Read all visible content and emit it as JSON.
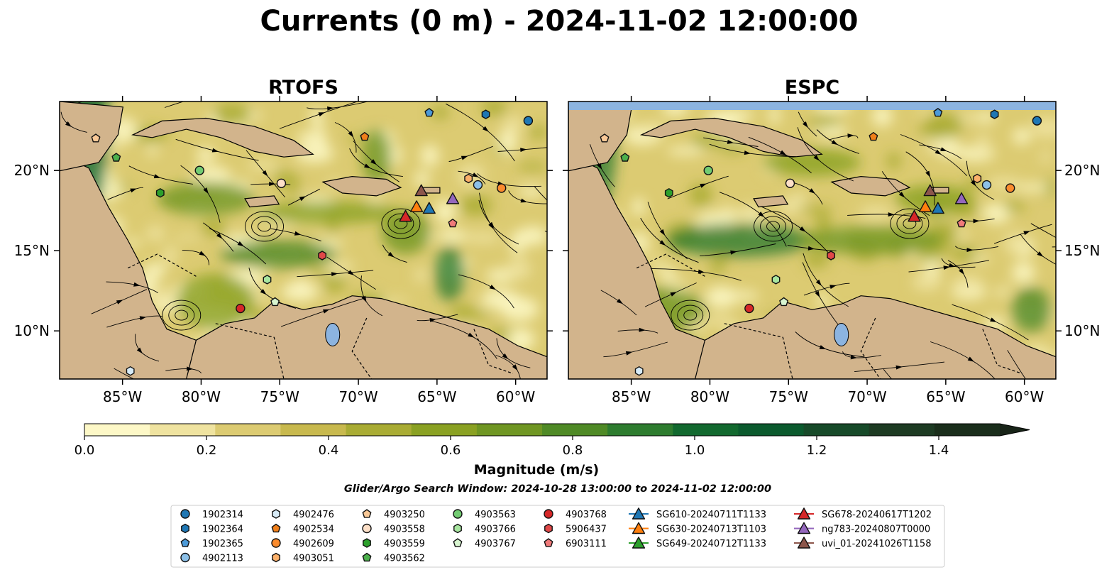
{
  "figure": {
    "title": "Currents (0 m) - 2024-11-02 12:00:00",
    "search_window": "Glider/Argo Search Window: 2024-10-28 13:00:00 to 2024-11-02 12:00:00"
  },
  "chart_data": [
    {
      "type": "map",
      "title": "RTOFS",
      "lon_range": [
        -89,
        -58
      ],
      "lat_range": [
        7,
        24.3
      ],
      "x_ticks": [
        "85°W",
        "80°W",
        "75°W",
        "70°W",
        "65°W",
        "60°W"
      ],
      "x_tick_values": [
        -85,
        -80,
        -75,
        -70,
        -65,
        -60
      ],
      "y_ticks": [
        "20°N",
        "15°N",
        "10°N"
      ],
      "y_tick_values": [
        20,
        15,
        10
      ],
      "y_tick_side": "left",
      "platforms": [
        {
          "id": "1902314",
          "lon": -59.2,
          "lat": 23.1
        },
        {
          "id": "1902364",
          "lon": -61.9,
          "lat": 23.5
        },
        {
          "id": "1902365",
          "lon": -65.5,
          "lat": 23.6
        },
        {
          "id": "4902113",
          "lon": -62.4,
          "lat": 19.1
        },
        {
          "id": "4902476",
          "lon": -84.5,
          "lat": 7.5
        },
        {
          "id": "4902534",
          "lon": -69.6,
          "lat": 22.1
        },
        {
          "id": "4902609",
          "lon": -60.9,
          "lat": 18.9
        },
        {
          "id": "4903051",
          "lon": -63.0,
          "lat": 19.5
        },
        {
          "id": "4903250",
          "lon": -86.7,
          "lat": 22.0
        },
        {
          "id": "4903558",
          "lon": -74.9,
          "lat": 19.2
        },
        {
          "id": "4903559",
          "lon": -82.6,
          "lat": 18.6
        },
        {
          "id": "4903562",
          "lon": -85.4,
          "lat": 20.8
        },
        {
          "id": "4903563",
          "lon": -80.1,
          "lat": 20.0
        },
        {
          "id": "4903766",
          "lon": -75.8,
          "lat": 13.2
        },
        {
          "id": "4903767",
          "lon": -75.3,
          "lat": 11.8
        },
        {
          "id": "4903768",
          "lon": -77.5,
          "lat": 11.4
        },
        {
          "id": "5906437",
          "lon": -72.3,
          "lat": 14.7
        },
        {
          "id": "6903111",
          "lon": -64.0,
          "lat": 16.7
        },
        {
          "id": "SG610-20240711T1133",
          "lon": -65.5,
          "lat": 17.6
        },
        {
          "id": "SG630-20240713T1103",
          "lon": -66.3,
          "lat": 17.7
        },
        {
          "id": "SG649-20240712T1133",
          "lon": -67.0,
          "lat": 17.1
        },
        {
          "id": "SG678-20240617T1202",
          "lon": -67.0,
          "lat": 17.1
        },
        {
          "id": "ng783-20240807T0000",
          "lon": -64.0,
          "lat": 18.2
        },
        {
          "id": "uvi_01-20241026T1158",
          "lon": -66.0,
          "lat": 18.7
        }
      ]
    },
    {
      "type": "map",
      "title": "ESPC",
      "lon_range": [
        -89,
        -58
      ],
      "lat_range": [
        7,
        24.3
      ],
      "x_ticks": [
        "85°W",
        "80°W",
        "75°W",
        "70°W",
        "65°W",
        "60°W"
      ],
      "x_tick_values": [
        -85,
        -80,
        -75,
        -70,
        -65,
        -60
      ],
      "y_ticks": [
        "20°N",
        "15°N",
        "10°N"
      ],
      "y_tick_values": [
        20,
        15,
        10
      ],
      "y_tick_side": "right",
      "platforms": [
        {
          "id": "1902314",
          "lon": -59.2,
          "lat": 23.1
        },
        {
          "id": "1902364",
          "lon": -61.9,
          "lat": 23.5
        },
        {
          "id": "1902365",
          "lon": -65.5,
          "lat": 23.6
        },
        {
          "id": "4902113",
          "lon": -62.4,
          "lat": 19.1
        },
        {
          "id": "4902476",
          "lon": -84.5,
          "lat": 7.5
        },
        {
          "id": "4902534",
          "lon": -69.6,
          "lat": 22.1
        },
        {
          "id": "4902609",
          "lon": -60.9,
          "lat": 18.9
        },
        {
          "id": "4903051",
          "lon": -63.0,
          "lat": 19.5
        },
        {
          "id": "4903250",
          "lon": -86.7,
          "lat": 22.0
        },
        {
          "id": "4903558",
          "lon": -74.9,
          "lat": 19.2
        },
        {
          "id": "4903559",
          "lon": -82.6,
          "lat": 18.6
        },
        {
          "id": "4903562",
          "lon": -85.4,
          "lat": 20.8
        },
        {
          "id": "4903563",
          "lon": -80.1,
          "lat": 20.0
        },
        {
          "id": "4903766",
          "lon": -75.8,
          "lat": 13.2
        },
        {
          "id": "4903767",
          "lon": -75.3,
          "lat": 11.8
        },
        {
          "id": "4903768",
          "lon": -77.5,
          "lat": 11.4
        },
        {
          "id": "5906437",
          "lon": -72.3,
          "lat": 14.7
        },
        {
          "id": "6903111",
          "lon": -64.0,
          "lat": 16.7
        },
        {
          "id": "SG610-20240711T1133",
          "lon": -65.5,
          "lat": 17.6
        },
        {
          "id": "SG630-20240713T1103",
          "lon": -66.3,
          "lat": 17.7
        },
        {
          "id": "SG649-20240712T1133",
          "lon": -67.0,
          "lat": 17.1
        },
        {
          "id": "SG678-20240617T1202",
          "lon": -67.0,
          "lat": 17.1
        },
        {
          "id": "ng783-20240807T0000",
          "lon": -64.0,
          "lat": 18.2
        },
        {
          "id": "uvi_01-20241026T1158",
          "lon": -66.0,
          "lat": 18.7
        }
      ]
    }
  ],
  "colorbar": {
    "label": "Magnitude (m/s)",
    "range": [
      0,
      1.5
    ],
    "extend": "max",
    "ticks": [
      "0.0",
      "0.2",
      "0.4",
      "0.6",
      "0.8",
      "1.0",
      "1.2",
      "1.4"
    ],
    "tick_values": [
      0.0,
      0.2,
      0.4,
      0.6,
      0.8,
      1.0,
      1.2,
      1.4
    ],
    "colors": [
      "#fdf8c7",
      "#efe3a0",
      "#dccb72",
      "#c8b94e",
      "#a9ac34",
      "#8aa123",
      "#6f9623",
      "#4f8a26",
      "#2e7c2f",
      "#12692f",
      "#0b5a2e",
      "#174a29",
      "#1d3b23",
      "#1a2e1b",
      "#182418"
    ]
  },
  "legend": {
    "items": [
      {
        "label": "1902314",
        "marker": "circle",
        "color": "#1f77b4"
      },
      {
        "label": "1902364",
        "marker": "hexagon",
        "color": "#1f77b4"
      },
      {
        "label": "1902365",
        "marker": "pentagon",
        "color": "#4c9ad8"
      },
      {
        "label": "4902113",
        "marker": "circle",
        "color": "#8cc0e8"
      },
      {
        "label": "4902476",
        "marker": "hexagon",
        "color": "#d7ebf7"
      },
      {
        "label": "4902534",
        "marker": "pentagon",
        "color": "#f07f1a"
      },
      {
        "label": "4902609",
        "marker": "circle",
        "color": "#fb8c2e"
      },
      {
        "label": "4903051",
        "marker": "hexagon",
        "color": "#fbb06a"
      },
      {
        "label": "4903250",
        "marker": "pentagon",
        "color": "#f9c896"
      },
      {
        "label": "4903558",
        "marker": "circle",
        "color": "#fde0c8"
      },
      {
        "label": "4903559",
        "marker": "hexagon",
        "color": "#2ca02c"
      },
      {
        "label": "4903562",
        "marker": "pentagon",
        "color": "#4cb04c"
      },
      {
        "label": "4903563",
        "marker": "circle",
        "color": "#72cc72"
      },
      {
        "label": "4903766",
        "marker": "hexagon",
        "color": "#a8e6a0"
      },
      {
        "label": "4903767",
        "marker": "pentagon",
        "color": "#d8f5d0"
      },
      {
        "label": "4903768",
        "marker": "circle",
        "color": "#d62728"
      },
      {
        "label": "5906437",
        "marker": "hexagon",
        "color": "#e04848"
      },
      {
        "label": "6903111",
        "marker": "pentagon",
        "color": "#f07a7a"
      },
      {
        "label": "SG610-20240711T1133",
        "marker": "triangle",
        "color": "#1f77b4"
      },
      {
        "label": "SG630-20240713T1103",
        "marker": "triangle",
        "color": "#ff7f0e"
      },
      {
        "label": "SG649-20240712T1133",
        "marker": "triangle",
        "color": "#2ca02c"
      },
      {
        "label": "SG678-20240617T1202",
        "marker": "triangle",
        "color": "#d62728"
      },
      {
        "label": "ng783-20240807T0000",
        "marker": "triangle",
        "color": "#9467bd"
      },
      {
        "label": "uvi_01-20241026T1158",
        "marker": "triangle",
        "color": "#8c564b"
      }
    ]
  },
  "colors": {
    "land": "#d2b48c",
    "water_body": "#8cb4e0",
    "flow": "#000000"
  }
}
